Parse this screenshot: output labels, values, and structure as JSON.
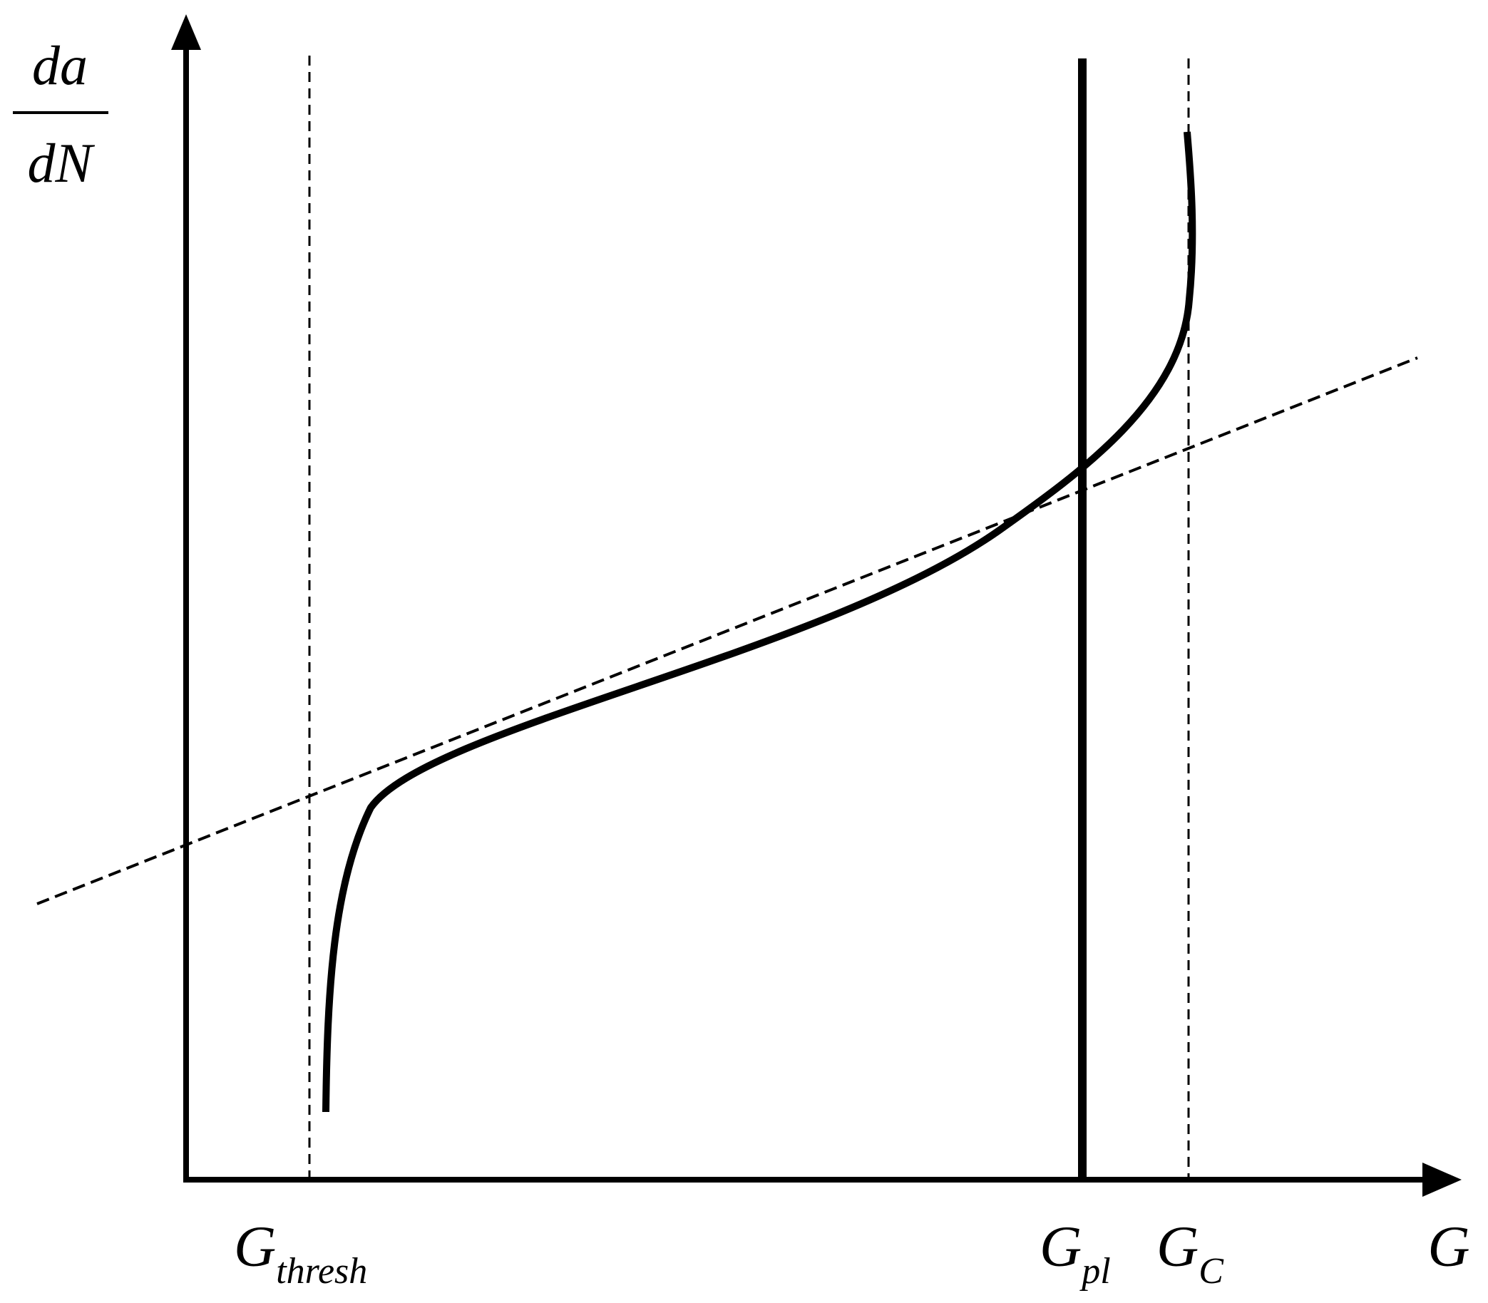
{
  "diagram": {
    "y_axis_label": {
      "numerator": "da",
      "denominator": "dN"
    },
    "x_axis_label": "G",
    "markers": {
      "threshold": {
        "base": "G",
        "sub": "thresh"
      },
      "plastic": {
        "base": "G",
        "sub": "pl"
      },
      "critical": {
        "base": "G",
        "sub": "C"
      }
    }
  },
  "colors": {
    "ink": "#000000",
    "background": "#ffffff"
  }
}
